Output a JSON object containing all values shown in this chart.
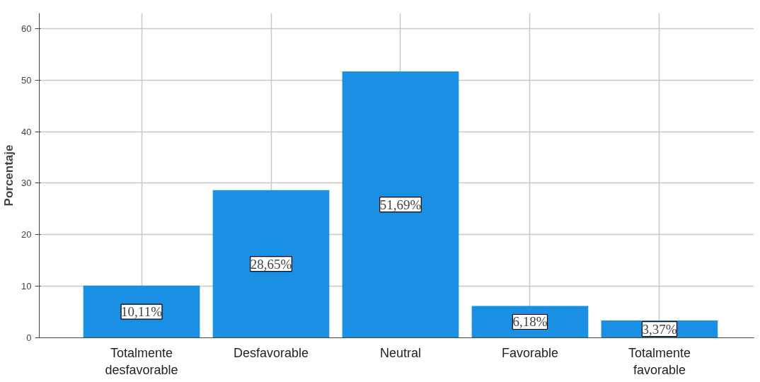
{
  "chart_data": {
    "type": "bar",
    "ylabel": "Porcentaje",
    "categories": [
      "Totalmente\ndesfavorable",
      "Desfavorable",
      "Neutral",
      "Favorable",
      "Totalmente\nfavorable"
    ],
    "values": [
      10.11,
      28.65,
      51.69,
      6.18,
      3.37
    ],
    "value_labels": [
      "10,11%",
      "28,65%",
      "51,69%",
      "6,18%",
      "3,37%"
    ],
    "color": "#1a90e5",
    "ylim": [
      0,
      63
    ],
    "yticks": [
      0,
      10,
      20,
      30,
      40,
      50,
      60
    ],
    "grid": true
  }
}
